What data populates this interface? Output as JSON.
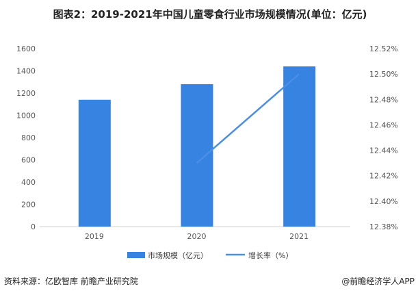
{
  "title": "图表2：2019-2021年中国儿童零食行业市场规模情况(单位：亿元)",
  "source": "资料来源：亿欧智库 前瞻产业研究院",
  "brand": "@前瞻经济学人APP",
  "colors": {
    "bar": "#3683e2",
    "line": "#4a8ee6"
  },
  "chart_data": {
    "type": "bar",
    "categories": [
      "2019",
      "2020",
      "2021"
    ],
    "series": [
      {
        "name": "市场规模（亿元）",
        "type": "bar",
        "axis": "left",
        "values": [
          1140,
          1280,
          1440
        ]
      },
      {
        "name": "增长率（%）",
        "type": "line",
        "axis": "right",
        "values": [
          null,
          12.43,
          12.5
        ]
      }
    ],
    "left_axis": {
      "ylim": [
        0,
        1600
      ],
      "ticks": [
        "0",
        "200",
        "400",
        "600",
        "800",
        "1000",
        "1200",
        "1400",
        "1600"
      ]
    },
    "right_axis": {
      "ylim": [
        12.38,
        12.52
      ],
      "ticks": [
        "12.38%",
        "12.40%",
        "12.42%",
        "12.44%",
        "12.46%",
        "12.48%",
        "12.50%",
        "12.52%"
      ]
    },
    "legend": "bottom"
  }
}
